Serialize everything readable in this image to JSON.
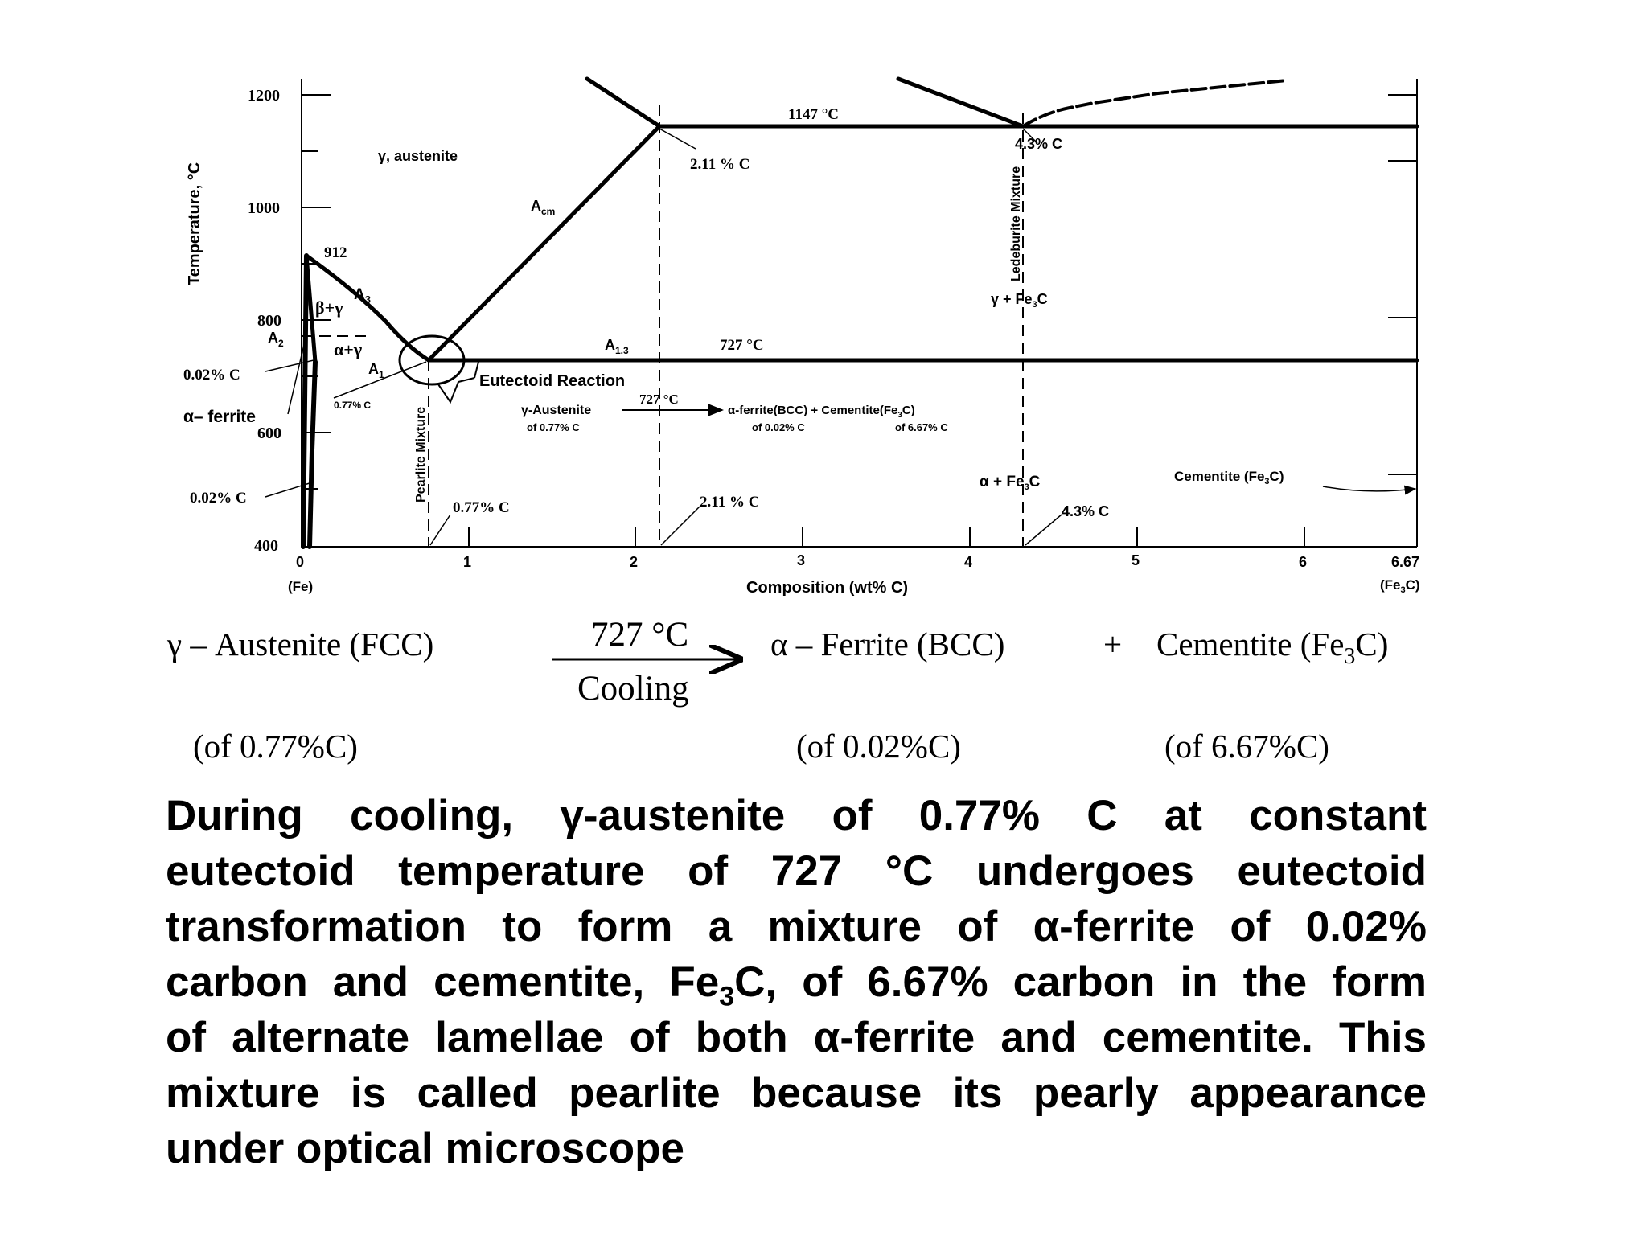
{
  "diagram": {
    "y_axis_label": "Temperature, °C",
    "y_ticks": [
      "1200",
      "1000",
      "800",
      "600",
      "400"
    ],
    "x_axis_label": "Composition (wt% C)",
    "x_ticks": [
      "0",
      "1",
      "2",
      "3",
      "4",
      "5",
      "6",
      "6.67"
    ],
    "x_left_sub": "(Fe)",
    "x_right_sub_pre": "(Fe",
    "x_right_sub_post": "C)",
    "label_1147": "1147 °C",
    "label_43_top": "4.3% C",
    "label_211_top": "2.11 % C",
    "label_austenite": "γ, austenite",
    "label_acm": "A",
    "label_acm_sub": "cm",
    "label_ledeburite": "Ledeburite Mixture",
    "label_912": "912",
    "label_a3": "A",
    "label_a3_sub": "3",
    "label_gamma_fe3c": "γ + Fe",
    "label_gamma_fe3c_post": "C",
    "label_a2": "A",
    "label_a2_sub": "2",
    "label_beta_gamma": "β+γ",
    "label_alpha_gamma": "α+γ",
    "label_a13": "A",
    "label_a13_sub": "1.3",
    "label_727_top": "727 °C",
    "label_002_upper": "0.02% C",
    "label_a1": "A",
    "label_a1_sub": "1",
    "label_eutectoid_reaction": "Eutectoid Reaction",
    "label_077_small": "0.77% C",
    "label_alpha_ferrite": "α– ferrite",
    "label_pearlite_mixture": "Pearlite Mixture",
    "inset_austenite": "γ-Austenite",
    "inset_austenite_comp": "of 0.77% C",
    "inset_727": "727 °C",
    "inset_ferrite": "α-ferrite(BCC)  +  Cementite(Fe",
    "inset_ferrite_post": "C)",
    "inset_ferrite_comp": "of 0.02% C",
    "inset_cementite_comp": "of 6.67% C",
    "label_alpha_fe3c": "α + Fe",
    "label_alpha_fe3c_post": "C",
    "label_cementite": "Cementite (Fe",
    "label_cementite_post": "C)",
    "label_002_lower": "0.02% C",
    "label_077_bottom": "0.77% C",
    "label_211_bottom": "2.11 % C",
    "label_43_bottom": "4.3% C"
  },
  "reaction": {
    "reactant": "γ – Austenite (FCC)",
    "condition_top": "727 °C",
    "condition_bottom": "Cooling",
    "product1": "α – Ferrite (BCC)",
    "plus": "+",
    "product2_pre": "Cementite (Fe",
    "product2_sub": "3",
    "product2_post": "C)",
    "reactant_comp": "(of 0.77%C)",
    "product1_comp": "(of 0.02%C)",
    "product2_comp": "(of 6.67%C)"
  },
  "description": {
    "line1": "During cooling, γ-austenite of 0.77% C at constant",
    "line2": "eutectoid temperature of 727 °C undergoes eutectoid",
    "line3": "transformation to form a mixture of α-ferrite of 0.02%",
    "line4_pre": "carbon and cementite, Fe",
    "line4_sub": "3",
    "line4_post": "C, of 6.67% carbon in the form",
    "line5": "of alternate lamellae of both α-ferrite and cementite. This",
    "line6": "mixture is called pearlite because its pearly appearance",
    "line7": "under optical microscope"
  }
}
